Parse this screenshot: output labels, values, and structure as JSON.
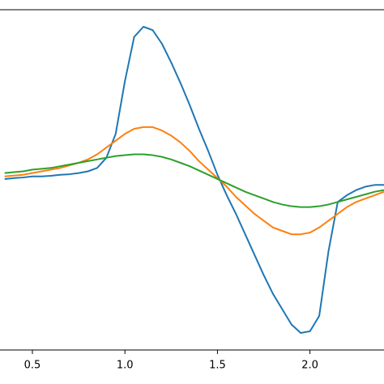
{
  "chart_data": {
    "type": "line",
    "x": [
      0.35,
      0.4,
      0.45,
      0.5,
      0.55,
      0.6,
      0.65,
      0.7,
      0.75,
      0.8,
      0.85,
      0.9,
      0.95,
      1.0,
      1.05,
      1.1,
      1.15,
      1.2,
      1.25,
      1.3,
      1.35,
      1.4,
      1.45,
      1.5,
      1.55,
      1.6,
      1.65,
      1.7,
      1.75,
      1.8,
      1.85,
      1.9,
      1.95,
      2.0,
      2.05,
      2.1,
      2.15,
      2.2,
      2.25,
      2.3,
      2.35,
      2.4
    ],
    "series": [
      {
        "color": "#1f77b4",
        "values": [
          0.005,
          0.01,
          0.014,
          0.02,
          0.02,
          0.024,
          0.03,
          0.033,
          0.04,
          0.05,
          0.07,
          0.13,
          0.27,
          0.58,
          0.84,
          0.9,
          0.88,
          0.8,
          0.69,
          0.57,
          0.44,
          0.3,
          0.17,
          0.03,
          -0.09,
          -0.2,
          -0.32,
          -0.44,
          -0.56,
          -0.67,
          -0.76,
          -0.85,
          -0.9,
          -0.89,
          -0.8,
          -0.42,
          -0.13,
          -0.09,
          -0.06,
          -0.04,
          -0.03,
          -0.03
        ]
      },
      {
        "color": "#ff7f0e",
        "values": [
          0.02,
          0.025,
          0.03,
          0.04,
          0.05,
          0.06,
          0.07,
          0.085,
          0.1,
          0.12,
          0.15,
          0.19,
          0.23,
          0.27,
          0.3,
          0.31,
          0.31,
          0.29,
          0.26,
          0.22,
          0.17,
          0.11,
          0.06,
          0.01,
          -0.04,
          -0.1,
          -0.15,
          -0.2,
          -0.24,
          -0.28,
          -0.3,
          -0.32,
          -0.32,
          -0.31,
          -0.28,
          -0.24,
          -0.2,
          -0.16,
          -0.13,
          -0.11,
          -0.09,
          -0.07
        ]
      },
      {
        "color": "#2ca02c",
        "values": [
          0.04,
          0.045,
          0.05,
          0.06,
          0.065,
          0.07,
          0.08,
          0.09,
          0.1,
          0.11,
          0.12,
          0.13,
          0.14,
          0.145,
          0.15,
          0.15,
          0.145,
          0.135,
          0.12,
          0.1,
          0.08,
          0.055,
          0.03,
          0.005,
          -0.02,
          -0.045,
          -0.07,
          -0.09,
          -0.11,
          -0.13,
          -0.145,
          -0.155,
          -0.16,
          -0.16,
          -0.155,
          -0.145,
          -0.13,
          -0.115,
          -0.1,
          -0.085,
          -0.07,
          -0.06
        ]
      }
    ],
    "xlim": [
      0.325,
      2.4
    ],
    "ylim": [
      -1,
      1
    ],
    "xticks": [
      0.5,
      {
        "value": 1,
        "label": "1.0"
      },
      1.5,
      {
        "value": 2,
        "label": "2.0"
      }
    ]
  }
}
